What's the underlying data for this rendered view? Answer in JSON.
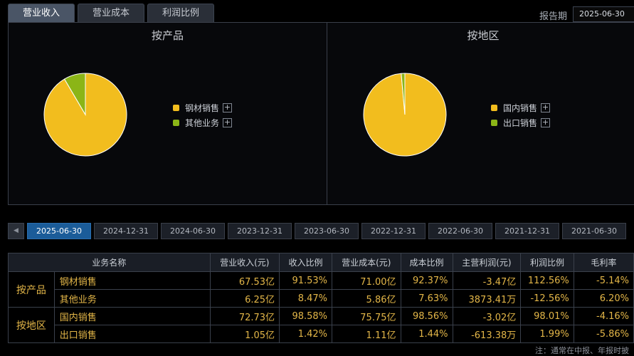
{
  "tabs": [
    {
      "label": "营业收入",
      "active": true
    },
    {
      "label": "营业成本",
      "active": false
    },
    {
      "label": "利润比例",
      "active": false
    }
  ],
  "period": {
    "label": "报告期",
    "value": "2025-06-30"
  },
  "colors": {
    "yellow": "#f2bd1e",
    "green": "#8bb517",
    "accent_blue": "#1b5c99",
    "value_gold": "#e3b648"
  },
  "panels": {
    "product": {
      "title": "按产品",
      "legend": [
        {
          "label": "钢材销售",
          "color": "#f2bd1e"
        },
        {
          "label": "其他业务",
          "color": "#8bb517"
        }
      ]
    },
    "region": {
      "title": "按地区",
      "legend": [
        {
          "label": "国内销售",
          "color": "#f2bd1e"
        },
        {
          "label": "出口销售",
          "color": "#8bb517"
        }
      ]
    }
  },
  "chart_data": [
    {
      "type": "pie",
      "title": "按产品",
      "categories": [
        "钢材销售",
        "其他业务"
      ],
      "values": [
        91.53,
        8.47
      ]
    },
    {
      "type": "pie",
      "title": "按地区",
      "categories": [
        "国内销售",
        "出口销售"
      ],
      "values": [
        98.58,
        1.42
      ]
    }
  ],
  "dates": [
    "2025-06-30",
    "2024-12-31",
    "2024-06-30",
    "2023-12-31",
    "2023-06-30",
    "2022-12-31",
    "2022-06-30",
    "2021-12-31",
    "2021-06-30"
  ],
  "active_date": "2025-06-30",
  "table": {
    "headers": [
      "业务名称",
      "营业收入(元)",
      "收入比例",
      "营业成本(元)",
      "成本比例",
      "主营利润(元)",
      "利润比例",
      "毛利率"
    ],
    "groups": [
      {
        "label": "按产品",
        "rows": [
          [
            "钢材销售",
            "67.53亿",
            "91.53%",
            "71.00亿",
            "92.37%",
            "-3.47亿",
            "112.56%",
            "-5.14%"
          ],
          [
            "其他业务",
            "6.25亿",
            "8.47%",
            "5.86亿",
            "7.63%",
            "3873.41万",
            "-12.56%",
            "6.20%"
          ]
        ]
      },
      {
        "label": "按地区",
        "rows": [
          [
            "国内销售",
            "72.73亿",
            "98.58%",
            "75.75亿",
            "98.56%",
            "-3.02亿",
            "98.01%",
            "-4.16%"
          ],
          [
            "出口销售",
            "1.05亿",
            "1.42%",
            "1.11亿",
            "1.44%",
            "-613.38万",
            "1.99%",
            "-5.86%"
          ]
        ]
      }
    ]
  },
  "note": "注：通常在中报、年报时披"
}
